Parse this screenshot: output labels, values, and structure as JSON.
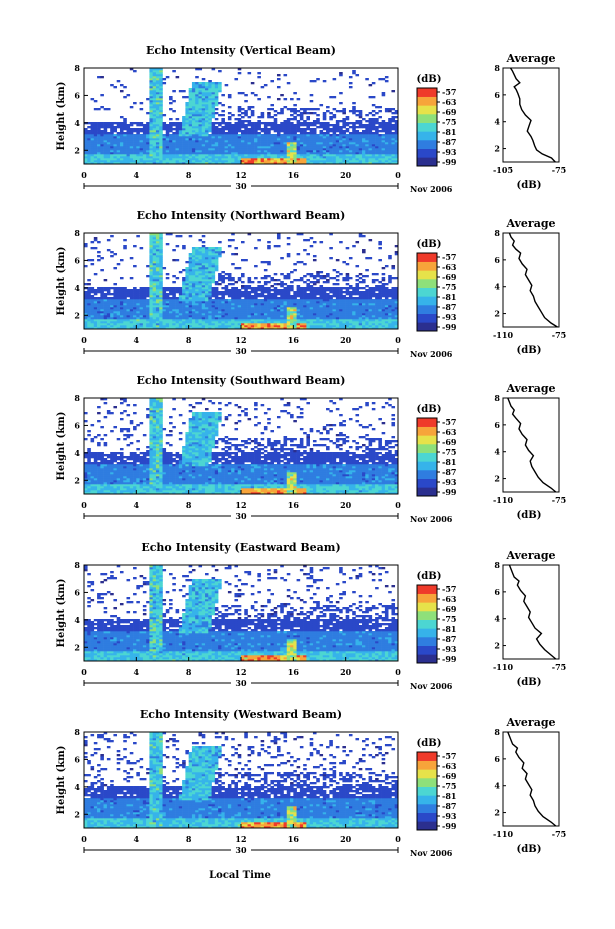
{
  "figure": {
    "x_axis_label": "Local Time",
    "date_label": "Nov 2006",
    "date_day": "30"
  },
  "colorbar": {
    "unit_label": "(dB)",
    "ticks": [
      "-57",
      "-63",
      "-69",
      "-75",
      "-81",
      "-87",
      "-93",
      "-99"
    ],
    "colors": [
      "#2b2f8f",
      "#2a48c8",
      "#2f7de0",
      "#36b3ea",
      "#4cd6d2",
      "#8ee07a",
      "#e6e24a",
      "#f7a43a",
      "#ef3a2a"
    ]
  },
  "chart_data": [
    {
      "type": "heatmap",
      "title": "Echo Intensity (Vertical Beam)",
      "ylabel": "Height (km)",
      "xlabel": "Local Time",
      "x_ticks": [
        "0",
        "4",
        "8",
        "12",
        "16",
        "20",
        "0"
      ],
      "y_ticks": [
        "2",
        "4",
        "6",
        "8"
      ],
      "xlim": [
        0,
        24
      ],
      "ylim": [
        1,
        8
      ],
      "color_scale_db": [
        -99,
        -57
      ],
      "grid": false
    },
    {
      "type": "heatmap",
      "title": "Echo Intensity (Northward Beam)",
      "ylabel": "Height (km)",
      "x_ticks": [
        "0",
        "4",
        "8",
        "12",
        "16",
        "20",
        "0"
      ],
      "y_ticks": [
        "2",
        "4",
        "6",
        "8"
      ],
      "xlim": [
        0,
        24
      ],
      "ylim": [
        1,
        8
      ],
      "color_scale_db": [
        -99,
        -57
      ],
      "grid": false
    },
    {
      "type": "heatmap",
      "title": "Echo Intensity (Southward Beam)",
      "ylabel": "Height (km)",
      "x_ticks": [
        "0",
        "4",
        "8",
        "12",
        "16",
        "20",
        "0"
      ],
      "y_ticks": [
        "2",
        "4",
        "6",
        "8"
      ],
      "xlim": [
        0,
        24
      ],
      "ylim": [
        1,
        8
      ],
      "color_scale_db": [
        -99,
        -57
      ],
      "grid": false
    },
    {
      "type": "heatmap",
      "title": "Echo Intensity (Eastward Beam)",
      "ylabel": "Height (km)",
      "x_ticks": [
        "0",
        "4",
        "8",
        "12",
        "16",
        "20",
        "0"
      ],
      "y_ticks": [
        "2",
        "4",
        "6",
        "8"
      ],
      "xlim": [
        0,
        24
      ],
      "ylim": [
        1,
        8
      ],
      "color_scale_db": [
        -99,
        -57
      ],
      "grid": false
    },
    {
      "type": "heatmap",
      "title": "Echo Intensity (Westward Beam)",
      "ylabel": "Height (km)",
      "x_ticks": [
        "0",
        "4",
        "8",
        "12",
        "16",
        "20",
        "0"
      ],
      "y_ticks": [
        "2",
        "4",
        "6",
        "8"
      ],
      "xlim": [
        0,
        24
      ],
      "ylim": [
        1,
        8
      ],
      "color_scale_db": [
        -99,
        -57
      ],
      "grid": false
    },
    {
      "type": "line",
      "title": "Average",
      "xlabel": "(dB)",
      "x_ticks": [
        "-105",
        "-75"
      ],
      "y_ticks": [
        "2",
        "4",
        "6",
        "8"
      ],
      "xlim": [
        -105,
        -75
      ],
      "ylim": [
        1,
        8
      ],
      "x": [
        -77,
        -79,
        -84,
        -87,
        -88,
        -89,
        -90,
        -92,
        -91,
        -90,
        -93,
        -95,
        -96,
        -96,
        -97,
        -98,
        -99,
        -96,
        -98,
        -99,
        -100,
        -101
      ],
      "y": [
        1.0,
        1.3,
        1.6,
        1.9,
        2.2,
        2.6,
        2.9,
        3.3,
        3.7,
        4.1,
        4.5,
        4.9,
        5.3,
        5.7,
        6.1,
        6.4,
        6.6,
        6.9,
        7.2,
        7.5,
        7.8,
        8.0
      ]
    },
    {
      "type": "line",
      "title": "Average",
      "xlabel": "(dB)",
      "x_ticks": [
        "-110",
        "-75"
      ],
      "y_ticks": [
        "2",
        "4",
        "6",
        "8"
      ],
      "xlim": [
        -110,
        -75
      ],
      "ylim": [
        1,
        8
      ],
      "x": [
        -76,
        -80,
        -84,
        -86,
        -88,
        -90,
        -91,
        -93,
        -92,
        -94,
        -96,
        -95,
        -98,
        -100,
        -99,
        -102,
        -104,
        -103,
        -105,
        -106
      ],
      "y": [
        1.0,
        1.3,
        1.7,
        2.1,
        2.5,
        2.9,
        3.3,
        3.7,
        4.1,
        4.5,
        4.9,
        5.3,
        5.7,
        6.1,
        6.5,
        6.8,
        7.1,
        7.4,
        7.7,
        8.0
      ]
    },
    {
      "type": "line",
      "title": "Average",
      "xlabel": "(dB)",
      "x_ticks": [
        "-110",
        "-75"
      ],
      "y_ticks": [
        "2",
        "4",
        "6",
        "8"
      ],
      "xlim": [
        -110,
        -75
      ],
      "ylim": [
        1,
        8
      ],
      "x": [
        -77,
        -80,
        -85,
        -88,
        -90,
        -92,
        -93,
        -91,
        -94,
        -96,
        -95,
        -98,
        -100,
        -99,
        -102,
        -104,
        -103,
        -105,
        -106,
        -107
      ],
      "y": [
        1.0,
        1.3,
        1.7,
        2.1,
        2.5,
        2.9,
        3.3,
        3.7,
        4.1,
        4.5,
        4.9,
        5.3,
        5.7,
        6.1,
        6.5,
        6.8,
        7.1,
        7.4,
        7.7,
        8.0
      ]
    },
    {
      "type": "line",
      "title": "Average",
      "xlabel": "(dB)",
      "x_ticks": [
        "-110",
        "-75"
      ],
      "y_ticks": [
        "2",
        "4",
        "6",
        "8"
      ],
      "xlim": [
        -110,
        -75
      ],
      "ylim": [
        1,
        8
      ],
      "x": [
        -77,
        -80,
        -84,
        -87,
        -89,
        -86,
        -90,
        -92,
        -94,
        -93,
        -95,
        -97,
        -96,
        -99,
        -101,
        -100,
        -103,
        -104,
        -105,
        -106
      ],
      "y": [
        1.0,
        1.3,
        1.7,
        2.1,
        2.5,
        2.9,
        3.3,
        3.7,
        4.1,
        4.5,
        4.9,
        5.3,
        5.7,
        6.1,
        6.5,
        6.8,
        7.1,
        7.4,
        7.7,
        8.0
      ]
    },
    {
      "type": "line",
      "title": "Average",
      "xlabel": "(dB)",
      "x_ticks": [
        "-110",
        "-75"
      ],
      "y_ticks": [
        "2",
        "4",
        "6",
        "8"
      ],
      "xlim": [
        -110,
        -75
      ],
      "ylim": [
        1,
        8
      ],
      "x": [
        -77,
        -80,
        -85,
        -88,
        -90,
        -91,
        -93,
        -92,
        -94,
        -96,
        -95,
        -98,
        -97,
        -100,
        -102,
        -101,
        -104,
        -105,
        -106,
        -107
      ],
      "y": [
        1.0,
        1.3,
        1.7,
        2.1,
        2.5,
        2.9,
        3.3,
        3.7,
        4.1,
        4.5,
        4.9,
        5.3,
        5.7,
        6.1,
        6.5,
        6.8,
        7.1,
        7.4,
        7.7,
        8.0
      ]
    }
  ]
}
